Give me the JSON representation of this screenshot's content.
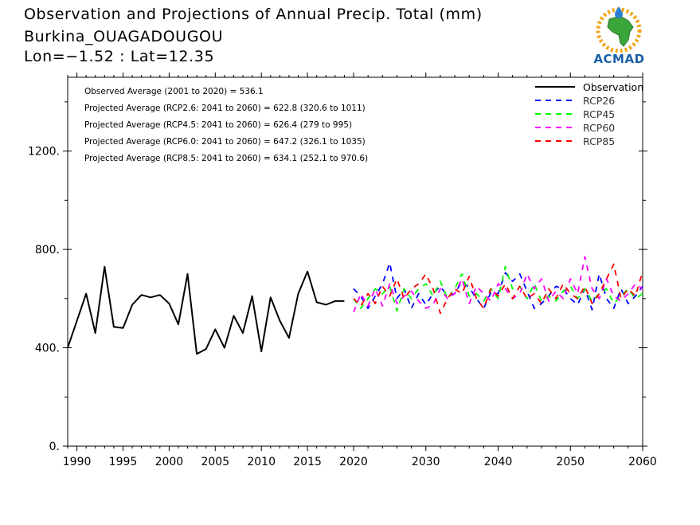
{
  "header": {
    "title_line1": "Observation and Projections of Annual Precip. Total (mm)",
    "title_line2": "Burkina_OUAGADOUGOU",
    "title_line3": "Lon=−1.52 : Lat=12.35"
  },
  "logo": {
    "text": "ACMAD",
    "icon": "africa-map-logo-icon"
  },
  "stats": [
    "Observed Average (2001 to 2020) = 536.1",
    "Projected Average (RCP2.6: 2041 to 2060) = 622.8 (320.6 to 1011)",
    "Projected Average (RCP4.5: 2041 to 2060) = 626.4 (279 to 995)",
    "Projected Average (RCP6.0: 2041 to 2060) = 647.2 (326.1 to 1035)",
    "Projected Average (RCP8.5: 2041 to 2060) = 634.1 (252.1 to 970.6)"
  ],
  "chart_data": {
    "type": "line",
    "title": "Observation and Projections of Annual Precip. Total (mm)",
    "xlabel": "",
    "ylabel": "",
    "xlim": [
      1989,
      2060
    ],
    "ylim": [
      0,
      1500
    ],
    "x_ticks": [
      1990,
      1995,
      2000,
      2005,
      2010,
      2015,
      2020,
      2030,
      2040,
      2050,
      2060
    ],
    "y_ticks": [
      0,
      400,
      800,
      1200
    ],
    "y_tick_labels": [
      "0.",
      "400.",
      "800.",
      "1200."
    ],
    "legend_position": "top-right",
    "grid": false,
    "series": [
      {
        "name": "Observation",
        "color": "#000000",
        "dash": "solid",
        "x": [
          1989,
          1990,
          1991,
          1992,
          1993,
          1994,
          1995,
          1996,
          1997,
          1998,
          1999,
          2000,
          2001,
          2002,
          2003,
          2004,
          2005,
          2006,
          2007,
          2008,
          2009,
          2010,
          2011,
          2012,
          2013,
          2014,
          2015,
          2016,
          2017,
          2018,
          2019
        ],
        "values": [
          400,
          510,
          620,
          460,
          730,
          485,
          480,
          575,
          615,
          605,
          615,
          580,
          495,
          700,
          375,
          395,
          475,
          400,
          530,
          460,
          610,
          385,
          605,
          510,
          440,
          620,
          710,
          585,
          575,
          590,
          590
        ]
      },
      {
        "name": "RCP26",
        "color": "#0000ff",
        "dash": "dashed",
        "x": [
          2020,
          2021,
          2022,
          2023,
          2024,
          2025,
          2026,
          2027,
          2028,
          2029,
          2030,
          2031,
          2032,
          2033,
          2034,
          2035,
          2036,
          2037,
          2038,
          2039,
          2040,
          2041,
          2042,
          2043,
          2044,
          2045,
          2046,
          2047,
          2048,
          2049,
          2050,
          2051,
          2052,
          2053,
          2054,
          2055,
          2056,
          2057,
          2058,
          2059,
          2060
        ],
        "values": [
          640,
          610,
          560,
          610,
          660,
          745,
          600,
          640,
          560,
          620,
          575,
          620,
          650,
          610,
          620,
          670,
          645,
          600,
          560,
          625,
          620,
          705,
          670,
          700,
          630,
          560,
          580,
          610,
          650,
          640,
          600,
          575,
          640,
          555,
          700,
          600,
          560,
          640,
          580,
          610,
          650
        ]
      },
      {
        "name": "RCP45",
        "color": "#00ff00",
        "dash": "dashed",
        "x": [
          2020,
          2021,
          2022,
          2023,
          2024,
          2025,
          2026,
          2027,
          2028,
          2029,
          2030,
          2031,
          2032,
          2033,
          2034,
          2035,
          2036,
          2037,
          2038,
          2039,
          2040,
          2041,
          2042,
          2043,
          2044,
          2045,
          2046,
          2047,
          2048,
          2049,
          2050,
          2051,
          2052,
          2053,
          2054,
          2055,
          2056,
          2057,
          2058,
          2059,
          2060
        ],
        "values": [
          600,
          560,
          600,
          640,
          620,
          650,
          550,
          640,
          600,
          640,
          660,
          610,
          670,
          600,
          640,
          700,
          610,
          620,
          590,
          640,
          600,
          730,
          640,
          650,
          600,
          660,
          590,
          610,
          590,
          630,
          650,
          600,
          640,
          590,
          620,
          640,
          580,
          610,
          640,
          600,
          620
        ]
      },
      {
        "name": "RCP60",
        "color": "#ff00ff",
        "dash": "dashed",
        "x": [
          2020,
          2021,
          2022,
          2023,
          2024,
          2025,
          2026,
          2027,
          2028,
          2029,
          2030,
          2031,
          2032,
          2033,
          2034,
          2035,
          2036,
          2037,
          2038,
          2039,
          2040,
          2041,
          2042,
          2043,
          2044,
          2045,
          2046,
          2047,
          2048,
          2049,
          2050,
          2051,
          2052,
          2053,
          2054,
          2055,
          2056,
          2057,
          2058,
          2059,
          2060
        ],
        "values": [
          545,
          620,
          570,
          640,
          570,
          660,
          580,
          610,
          630,
          590,
          560,
          575,
          640,
          600,
          620,
          680,
          580,
          650,
          620,
          590,
          660,
          640,
          600,
          620,
          700,
          640,
          680,
          590,
          630,
          600,
          680,
          620,
          770,
          640,
          600,
          680,
          610,
          590,
          620,
          660,
          640
        ]
      },
      {
        "name": "RCP85",
        "color": "#ff0000",
        "dash": "dashed",
        "x": [
          2020,
          2021,
          2022,
          2023,
          2024,
          2025,
          2026,
          2027,
          2028,
          2029,
          2030,
          2031,
          2032,
          2033,
          2034,
          2035,
          2036,
          2037,
          2038,
          2039,
          2040,
          2041,
          2042,
          2043,
          2044,
          2045,
          2046,
          2047,
          2048,
          2049,
          2050,
          2051,
          2052,
          2053,
          2054,
          2055,
          2056,
          2057,
          2058,
          2059,
          2060
        ],
        "values": [
          600,
          570,
          620,
          580,
          650,
          610,
          680,
          600,
          640,
          660,
          700,
          640,
          540,
          600,
          640,
          620,
          690,
          600,
          560,
          640,
          610,
          660,
          600,
          650,
          600,
          620,
          580,
          640,
          600,
          660,
          620,
          600,
          650,
          580,
          620,
          680,
          740,
          600,
          640,
          610,
          710
        ]
      }
    ]
  }
}
